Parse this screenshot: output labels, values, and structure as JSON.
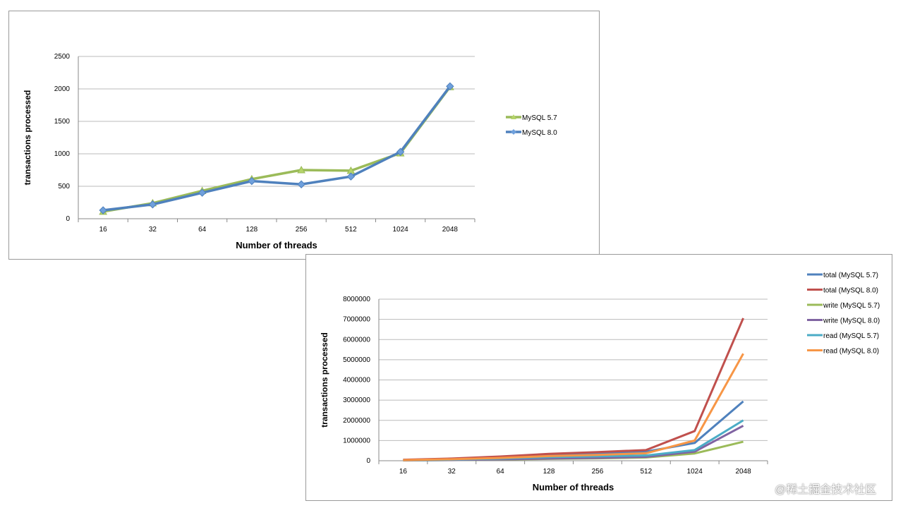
{
  "chart_data": [
    {
      "type": "line",
      "title": "",
      "xlabel": "Number of threads",
      "ylabel": "transactions processed",
      "categories": [
        "16",
        "32",
        "64",
        "128",
        "256",
        "512",
        "1024",
        "2048"
      ],
      "ylim": [
        0,
        2500
      ],
      "yticks": [
        "0",
        "500",
        "1000",
        "1500",
        "2000",
        "2500"
      ],
      "grid": true,
      "legend_position": "right",
      "series": [
        {
          "name": "MySQL 5.7",
          "color": "#9bbb59",
          "marker": "triangle",
          "values": [
            110,
            240,
            430,
            610,
            750,
            740,
            1010,
            2030
          ]
        },
        {
          "name": "MySQL 8.0",
          "color": "#4f81bd",
          "marker": "diamond",
          "values": [
            130,
            220,
            400,
            580,
            530,
            650,
            1030,
            2040
          ]
        }
      ]
    },
    {
      "type": "line",
      "title": "",
      "xlabel": "Number of threads",
      "ylabel": "transactions processed",
      "categories": [
        "16",
        "32",
        "64",
        "128",
        "256",
        "512",
        "1024",
        "2048"
      ],
      "ylim": [
        0,
        8000000
      ],
      "yticks": [
        "0",
        "1000000",
        "2000000",
        "3000000",
        "4000000",
        "5000000",
        "6000000",
        "7000000",
        "8000000"
      ],
      "grid": true,
      "legend_position": "top-right",
      "series": [
        {
          "name": "total (MySQL 5.7)",
          "color": "#4f81bd",
          "values": [
            40000,
            90000,
            170000,
            280000,
            360000,
            450000,
            880000,
            2940000
          ]
        },
        {
          "name": "total (MySQL 8.0)",
          "color": "#c0504d",
          "values": [
            50000,
            110000,
            210000,
            340000,
            430000,
            530000,
            1470000,
            7060000
          ]
        },
        {
          "name": "write (MySQL 5.7)",
          "color": "#9bbb59",
          "values": [
            15000,
            30000,
            60000,
            90000,
            120000,
            160000,
            360000,
            940000
          ]
        },
        {
          "name": "write (MySQL 8.0)",
          "color": "#8064a2",
          "values": [
            18000,
            35000,
            70000,
            110000,
            140000,
            190000,
            450000,
            1730000
          ]
        },
        {
          "name": "read (MySQL 5.7)",
          "color": "#4bacc6",
          "values": [
            25000,
            55000,
            110000,
            180000,
            220000,
            260000,
            530000,
            2000000
          ]
        },
        {
          "name": "read (MySQL 8.0)",
          "color": "#f79646",
          "values": [
            32000,
            75000,
            140000,
            230000,
            290000,
            370000,
            1000000,
            5300000
          ]
        }
      ]
    }
  ],
  "watermark": "@稀土掘金技术社区"
}
